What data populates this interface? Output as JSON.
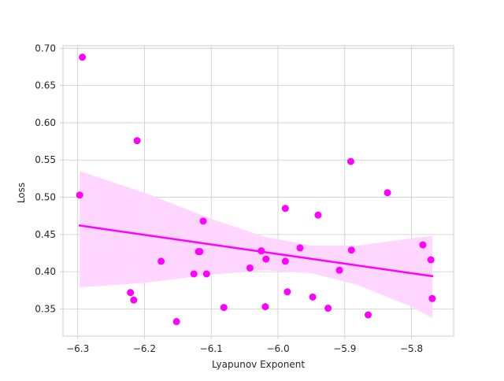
{
  "chart_data": {
    "type": "scatter",
    "title": "",
    "xlabel": "Lyapunov Exponent",
    "ylabel": "Loss",
    "xlim": [
      -6.322,
      -5.737
    ],
    "ylim": [
      0.3135,
      0.7035
    ],
    "xticks": [
      -6.3,
      -6.2,
      -6.1,
      -6.0,
      -5.9,
      -5.8
    ],
    "xtick_labels": [
      "−6.3",
      "−6.2",
      "−6.1",
      "−6.0",
      "−5.9",
      "−5.8"
    ],
    "yticks": [
      0.35,
      0.4,
      0.45,
      0.5,
      0.55,
      0.6,
      0.65,
      0.7
    ],
    "ytick_labels": [
      "0.35",
      "0.40",
      "0.45",
      "0.50",
      "0.55",
      "0.60",
      "0.65",
      "0.70"
    ],
    "grid": true,
    "point_color": "#ff00ff",
    "line_color": "#ff00ff",
    "band_color": "#ffd6ff",
    "points": [
      {
        "x": -6.293,
        "y": 0.688
      },
      {
        "x": -6.297,
        "y": 0.503
      },
      {
        "x": -6.211,
        "y": 0.576
      },
      {
        "x": -6.221,
        "y": 0.372
      },
      {
        "x": -6.216,
        "y": 0.362
      },
      {
        "x": -6.175,
        "y": 0.414
      },
      {
        "x": -6.152,
        "y": 0.333
      },
      {
        "x": -6.126,
        "y": 0.397
      },
      {
        "x": -6.119,
        "y": 0.427
      },
      {
        "x": -6.117,
        "y": 0.427
      },
      {
        "x": -6.112,
        "y": 0.468
      },
      {
        "x": -6.107,
        "y": 0.397
      },
      {
        "x": -6.081,
        "y": 0.352
      },
      {
        "x": -6.042,
        "y": 0.405
      },
      {
        "x": -6.025,
        "y": 0.428
      },
      {
        "x": -6.018,
        "y": 0.417
      },
      {
        "x": -6.019,
        "y": 0.353
      },
      {
        "x": -5.989,
        "y": 0.485
      },
      {
        "x": -5.989,
        "y": 0.414
      },
      {
        "x": -5.986,
        "y": 0.373
      },
      {
        "x": -5.967,
        "y": 0.432
      },
      {
        "x": -5.948,
        "y": 0.366
      },
      {
        "x": -5.94,
        "y": 0.476
      },
      {
        "x": -5.925,
        "y": 0.351
      },
      {
        "x": -5.908,
        "y": 0.402
      },
      {
        "x": -5.891,
        "y": 0.548
      },
      {
        "x": -5.89,
        "y": 0.429
      },
      {
        "x": -5.865,
        "y": 0.342
      },
      {
        "x": -5.836,
        "y": 0.506
      },
      {
        "x": -5.783,
        "y": 0.436
      },
      {
        "x": -5.771,
        "y": 0.416
      },
      {
        "x": -5.769,
        "y": 0.364
      }
    ],
    "regression": {
      "x": [
        -6.297,
        -5.769
      ],
      "y": [
        0.462,
        0.394
      ]
    },
    "confidence_band": {
      "x": [
        -6.297,
        -6.2,
        -6.1,
        -6.02,
        -5.95,
        -5.88,
        -5.8,
        -5.769
      ],
      "upper": [
        0.535,
        0.506,
        0.471,
        0.447,
        0.435,
        0.435,
        0.445,
        0.448
      ],
      "lower": [
        0.379,
        0.385,
        0.396,
        0.402,
        0.398,
        0.382,
        0.353,
        0.338
      ]
    }
  }
}
